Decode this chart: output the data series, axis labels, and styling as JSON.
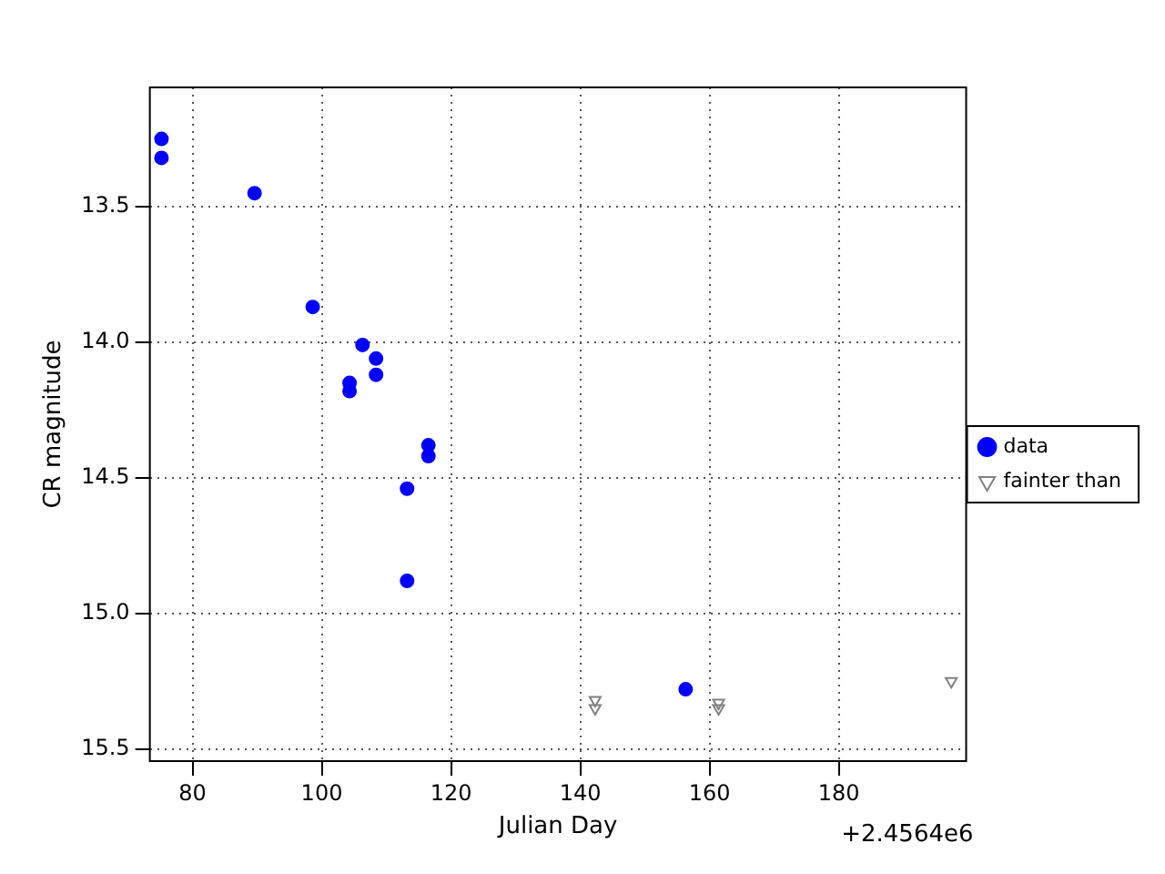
{
  "chart_data": {
    "type": "scatter",
    "xlabel": "Julian Day",
    "ylabel": "CR magnitude",
    "annotations": [
      "+2.4564e6"
    ],
    "xlim": [
      73.4,
      199.7
    ],
    "xticks": [
      80,
      100,
      120,
      140,
      160,
      180
    ],
    "ylim": [
      15.545,
      13.06
    ],
    "yticks": [
      13.5,
      {
        "value": 14,
        "label": "14.0"
      },
      14.5,
      {
        "value": 15,
        "label": "15.0"
      },
      15.5
    ],
    "grid": true,
    "legend": "right",
    "series": [
      {
        "name": "data",
        "color": "#0000ff",
        "marker": "circle",
        "x": [
          75.2,
          75.2,
          89.6,
          98.6,
          106.3,
          108.4,
          104.3,
          104.3,
          108.4,
          116.5,
          116.5,
          113.2,
          113.2,
          156.3
        ],
        "values": [
          13.25,
          13.32,
          13.45,
          13.87,
          14.01,
          14.06,
          14.15,
          14.18,
          14.12,
          14.38,
          14.42,
          14.54,
          14.88,
          15.28
        ]
      },
      {
        "name": "fainter than",
        "color": "#808080",
        "marker": "triangle",
        "x": [
          142.3,
          142.3,
          161.4,
          161.4,
          197.4
        ],
        "values": [
          15.32,
          15.35,
          15.33,
          15.35,
          15.25
        ]
      }
    ]
  }
}
